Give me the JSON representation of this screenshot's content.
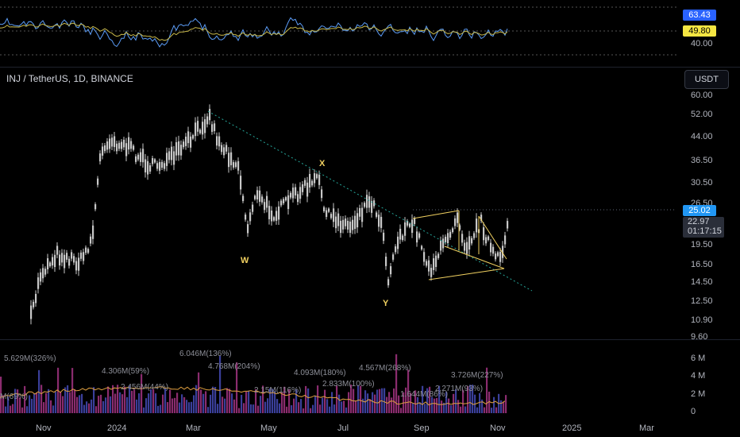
{
  "header": {
    "symbol": "INJ / TetherUS, 1D, BINANCE",
    "currency_button": "USDT"
  },
  "rsi_pane": {
    "value_label": "63.43",
    "ma_label": "49.80",
    "ref_label": "40.00",
    "rsi_color": "#5b9cf6",
    "ma_color": "#c8b84a"
  },
  "price_axis": {
    "ticks": [
      "60.00",
      "52.00",
      "44.00",
      "36.50",
      "30.50",
      "26.50",
      "19.50",
      "16.50",
      "14.50",
      "12.50",
      "10.90",
      "9.60"
    ],
    "level_label": "25.02",
    "current_price": "22.97",
    "countdown": "01:17:15"
  },
  "volume_axis": {
    "ticks": [
      "6 M",
      "4 M",
      "2 M",
      "0"
    ]
  },
  "volume_labels": [
    "5.629M(326%)",
    "4.306M(59%)",
    "6.046M(136%)",
    "4.768M(204%)",
    "4.093M(180%)",
    "4.567M(268%)",
    "3.726M(227%)",
    "M(69%)",
    "2.456M(44%)",
    "2.15M(116%)",
    "2.833M(100%)",
    "1.644M(86%)",
    "2.271M(93%)"
  ],
  "time_axis": {
    "labels": [
      "Nov",
      "2024",
      "Mar",
      "May",
      "Jul",
      "Sep",
      "Nov",
      "2025",
      "Mar"
    ]
  },
  "wave_labels": {
    "w": "W",
    "x": "X",
    "y": "Y"
  },
  "colors": {
    "candles": "#c8c8c8",
    "trend_dotted": "#26a69a",
    "pattern_lines": "#f0d060",
    "level_badge": "#2196f3",
    "vol_ma": "#4a6fd6",
    "vol_ma2": "#e0a040"
  }
}
